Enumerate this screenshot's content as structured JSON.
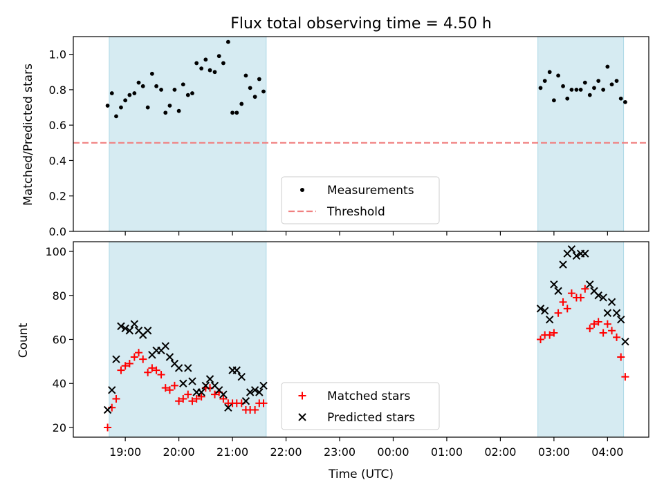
{
  "chart_data": {
    "title": "Flux total observing time = 4.50 h",
    "xlabel": "Time (UTC)",
    "x_tick_labels": [
      "19:00",
      "20:00",
      "21:00",
      "22:00",
      "23:00",
      "00:00",
      "01:00",
      "02:00",
      "03:00",
      "04:00"
    ],
    "x_tick_hours": [
      19,
      20,
      21,
      22,
      23,
      24,
      25,
      26,
      27,
      28
    ],
    "xlim_hours": [
      18.03,
      28.77
    ],
    "shaded_intervals_hours": [
      [
        18.7,
        21.63
      ],
      [
        26.7,
        28.3
      ]
    ],
    "colors": {
      "shade": "#add8e6",
      "threshold": "#f08080",
      "matched": "#ff0000",
      "predicted": "#000000",
      "measurement": "#000000"
    },
    "panels": [
      {
        "type": "scatter",
        "ylabel": "Matched/Predicted stars",
        "ylim": [
          0,
          1.1
        ],
        "y_ticks": [
          0.0,
          0.2,
          0.4,
          0.6,
          0.8,
          1.0
        ],
        "y_tick_labels": [
          "0.0",
          "0.2",
          "0.4",
          "0.6",
          "0.8",
          "1.0"
        ],
        "legend": {
          "placement": "lower center",
          "entries": [
            {
              "label": "Measurements",
              "marker": "dot"
            },
            {
              "label": "Threshold",
              "marker": "dashed-line"
            }
          ]
        },
        "threshold": {
          "y": 0.5
        },
        "measurements": [
          [
            18.67,
            0.71
          ],
          [
            18.75,
            0.78
          ],
          [
            18.83,
            0.65
          ],
          [
            18.92,
            0.7
          ],
          [
            19.0,
            0.74
          ],
          [
            19.08,
            0.77
          ],
          [
            19.17,
            0.78
          ],
          [
            19.25,
            0.84
          ],
          [
            19.33,
            0.82
          ],
          [
            19.42,
            0.7
          ],
          [
            19.5,
            0.89
          ],
          [
            19.58,
            0.82
          ],
          [
            19.67,
            0.8
          ],
          [
            19.75,
            0.67
          ],
          [
            19.83,
            0.71
          ],
          [
            19.92,
            0.8
          ],
          [
            20.0,
            0.68
          ],
          [
            20.08,
            0.83
          ],
          [
            20.17,
            0.77
          ],
          [
            20.25,
            0.78
          ],
          [
            20.33,
            0.95
          ],
          [
            20.42,
            0.92
          ],
          [
            20.5,
            0.97
          ],
          [
            20.58,
            0.91
          ],
          [
            20.67,
            0.9
          ],
          [
            20.75,
            0.99
          ],
          [
            20.83,
            0.95
          ],
          [
            20.92,
            1.07
          ],
          [
            21.0,
            0.67
          ],
          [
            21.08,
            0.67
          ],
          [
            21.17,
            0.72
          ],
          [
            21.25,
            0.88
          ],
          [
            21.33,
            0.81
          ],
          [
            21.42,
            0.76
          ],
          [
            21.5,
            0.86
          ],
          [
            21.58,
            0.79
          ],
          [
            26.75,
            0.81
          ],
          [
            26.83,
            0.85
          ],
          [
            26.92,
            0.9
          ],
          [
            27.0,
            0.74
          ],
          [
            27.08,
            0.88
          ],
          [
            27.17,
            0.82
          ],
          [
            27.25,
            0.75
          ],
          [
            27.33,
            0.8
          ],
          [
            27.42,
            0.8
          ],
          [
            27.5,
            0.8
          ],
          [
            27.58,
            0.84
          ],
          [
            27.67,
            0.77
          ],
          [
            27.75,
            0.81
          ],
          [
            27.83,
            0.85
          ],
          [
            27.92,
            0.8
          ],
          [
            28.0,
            0.93
          ],
          [
            28.08,
            0.83
          ],
          [
            28.17,
            0.85
          ],
          [
            28.25,
            0.75
          ],
          [
            28.33,
            0.73
          ]
        ]
      },
      {
        "type": "scatter",
        "ylabel": "Count",
        "ylim": [
          15.6,
          104.4
        ],
        "y_ticks": [
          20,
          40,
          60,
          80,
          100
        ],
        "y_tick_labels": [
          "20",
          "40",
          "60",
          "80",
          "100"
        ],
        "legend": {
          "placement": "lower center",
          "entries": [
            {
              "label": "Matched stars",
              "marker": "plus"
            },
            {
              "label": "Predicted stars",
              "marker": "x"
            }
          ]
        },
        "series": [
          {
            "name": "Matched stars",
            "marker": "plus",
            "points": [
              [
                18.67,
                20
              ],
              [
                18.75,
                29
              ],
              [
                18.83,
                33
              ],
              [
                18.92,
                46
              ],
              [
                19.0,
                48
              ],
              [
                19.08,
                49
              ],
              [
                19.17,
                52
              ],
              [
                19.25,
                54
              ],
              [
                19.33,
                51
              ],
              [
                19.42,
                45
              ],
              [
                19.5,
                47
              ],
              [
                19.58,
                46
              ],
              [
                19.67,
                44
              ],
              [
                19.75,
                38
              ],
              [
                19.83,
                37
              ],
              [
                19.92,
                39
              ],
              [
                20.0,
                32
              ],
              [
                20.08,
                33
              ],
              [
                20.17,
                35
              ],
              [
                20.25,
                32
              ],
              [
                20.33,
                33
              ],
              [
                20.42,
                34
              ],
              [
                20.5,
                38
              ],
              [
                20.58,
                38
              ],
              [
                20.67,
                35
              ],
              [
                20.75,
                36
              ],
              [
                20.83,
                33
              ],
              [
                20.92,
                31
              ],
              [
                21.0,
                31
              ],
              [
                21.08,
                31
              ],
              [
                21.17,
                31
              ],
              [
                21.25,
                28
              ],
              [
                21.33,
                28
              ],
              [
                21.42,
                28
              ],
              [
                21.5,
                31
              ],
              [
                21.58,
                31
              ],
              [
                26.75,
                60
              ],
              [
                26.83,
                62
              ],
              [
                26.92,
                62
              ],
              [
                27.0,
                63
              ],
              [
                27.08,
                72
              ],
              [
                27.17,
                77
              ],
              [
                27.25,
                74
              ],
              [
                27.33,
                81
              ],
              [
                27.42,
                79
              ],
              [
                27.5,
                79
              ],
              [
                27.58,
                83
              ],
              [
                27.67,
                65
              ],
              [
                27.75,
                67
              ],
              [
                27.83,
                68
              ],
              [
                27.92,
                63
              ],
              [
                28.0,
                67
              ],
              [
                28.08,
                64
              ],
              [
                28.17,
                61
              ],
              [
                28.25,
                52
              ],
              [
                28.33,
                43
              ]
            ]
          },
          {
            "name": "Predicted stars",
            "marker": "x",
            "points": [
              [
                18.67,
                28
              ],
              [
                18.75,
                37
              ],
              [
                18.83,
                51
              ],
              [
                18.92,
                66
              ],
              [
                19.0,
                65
              ],
              [
                19.08,
                64
              ],
              [
                19.17,
                67
              ],
              [
                19.25,
                64
              ],
              [
                19.33,
                62
              ],
              [
                19.42,
                64
              ],
              [
                19.5,
                53
              ],
              [
                19.58,
                55
              ],
              [
                19.67,
                55
              ],
              [
                19.75,
                57
              ],
              [
                19.83,
                52
              ],
              [
                19.92,
                49
              ],
              [
                20.0,
                47
              ],
              [
                20.08,
                40
              ],
              [
                20.17,
                47
              ],
              [
                20.25,
                41
              ],
              [
                20.33,
                36
              ],
              [
                20.42,
                36
              ],
              [
                20.5,
                39
              ],
              [
                20.58,
                42
              ],
              [
                20.67,
                39
              ],
              [
                20.75,
                37
              ],
              [
                20.83,
                35
              ],
              [
                20.92,
                29
              ],
              [
                21.0,
                46
              ],
              [
                21.08,
                46
              ],
              [
                21.17,
                43
              ],
              [
                21.25,
                32
              ],
              [
                21.33,
                36
              ],
              [
                21.42,
                37
              ],
              [
                21.5,
                36
              ],
              [
                21.58,
                39
              ],
              [
                26.75,
                74
              ],
              [
                26.83,
                73
              ],
              [
                26.92,
                69
              ],
              [
                27.0,
                85
              ],
              [
                27.08,
                82
              ],
              [
                27.17,
                94
              ],
              [
                27.25,
                99
              ],
              [
                27.33,
                101
              ],
              [
                27.42,
                98
              ],
              [
                27.5,
                99
              ],
              [
                27.58,
                99
              ],
              [
                27.67,
                85
              ],
              [
                27.75,
                82
              ],
              [
                27.83,
                80
              ],
              [
                27.92,
                79
              ],
              [
                28.0,
                72
              ],
              [
                28.08,
                77
              ],
              [
                28.17,
                72
              ],
              [
                28.25,
                69
              ],
              [
                28.33,
                59
              ]
            ]
          }
        ]
      }
    ]
  }
}
